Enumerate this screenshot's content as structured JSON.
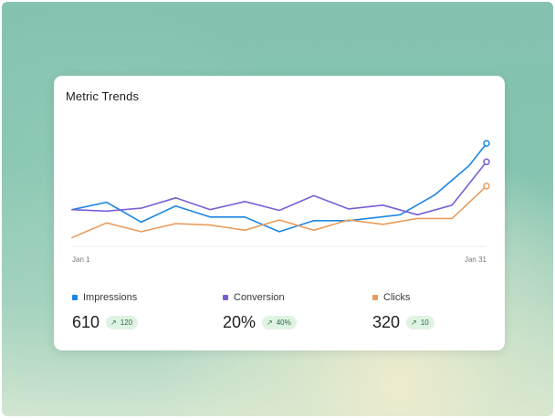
{
  "colors": {
    "impressions": "#1b86e3",
    "conversion": "#7b5fd6",
    "clicks": "#e89c5c",
    "badge_bg": "#dff3e3",
    "badge_text": "#2a6b3a"
  },
  "card": {
    "title": "Metric Trends"
  },
  "chart_data": {
    "type": "line",
    "title": "Metric Trends",
    "x_start_label": "Jan 1",
    "x_end_label": "Jan 31",
    "points": 16,
    "grid": false,
    "legend_position": "bottom",
    "series": [
      {
        "name": "Impressions",
        "color": "#1b86e3",
        "values": [
          50,
          60,
          33,
          55,
          40,
          40,
          20,
          35,
          35,
          43,
          70,
          110,
          140
        ],
        "x_index": [
          0,
          2,
          4,
          6,
          8,
          10,
          12,
          14,
          16,
          19,
          21,
          23,
          24
        ]
      },
      {
        "name": "Conversion",
        "color": "#7b5fd6",
        "values": [
          50,
          48,
          52,
          66,
          50,
          61,
          49,
          69,
          51,
          56,
          43,
          56,
          115
        ],
        "x_index": [
          0,
          2,
          4,
          6,
          8,
          10,
          12,
          14,
          16,
          18,
          20,
          22,
          24
        ]
      },
      {
        "name": "Clicks",
        "color": "#e89c5c",
        "values": [
          12,
          32,
          20,
          31,
          29,
          22,
          36,
          22,
          36,
          30,
          38,
          38,
          82
        ],
        "x_index": [
          0,
          2,
          4,
          6,
          8,
          10,
          12,
          14,
          16,
          18,
          20,
          22,
          24
        ]
      }
    ],
    "y_range": [
      0,
      160
    ]
  },
  "legend": [
    {
      "name": "Impressions",
      "value": "610",
      "delta": "120",
      "color": "#1b86e3"
    },
    {
      "name": "Conversion",
      "value": "20%",
      "delta": "40%",
      "color": "#7b5fd6"
    },
    {
      "name": "Clicks",
      "value": "320",
      "delta": "10",
      "color": "#e89c5c"
    }
  ]
}
